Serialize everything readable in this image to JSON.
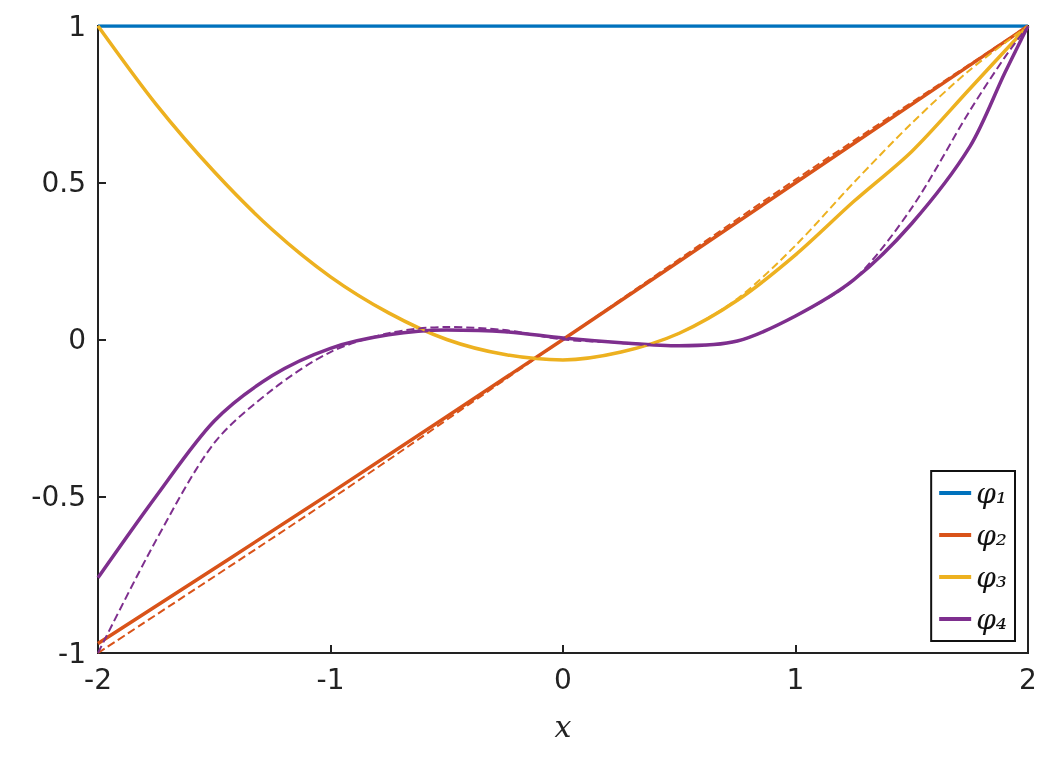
{
  "chart_data": {
    "type": "line",
    "xlabel": "x",
    "xlim": [
      -2,
      2
    ],
    "xticks": [
      -2,
      -1,
      0,
      1,
      2
    ],
    "ylim": [
      -1,
      1
    ],
    "yticks": [
      -1,
      -0.5,
      0,
      0.5,
      1
    ],
    "grid": false,
    "legend": "bottom right",
    "marker": "none",
    "series": [
      {
        "name": "φ₁",
        "color": "#0072bd",
        "line_style": "solid",
        "x": [
          -2,
          2
        ],
        "values": [
          1,
          1
        ]
      },
      {
        "name": "φ₂",
        "color": "#d95319",
        "line_style": "solid",
        "x": [
          -2,
          -1,
          0,
          1,
          2
        ],
        "values": [
          -0.97,
          -0.49,
          0,
          0.5,
          1
        ]
      },
      {
        "name": "φ₃",
        "color": "#edb120",
        "line_style": "solid",
        "x": [
          -2,
          -1.75,
          -1.5,
          -1.25,
          -1,
          -0.75,
          -0.5,
          -0.25,
          0,
          0.25,
          0.5,
          0.75,
          1,
          1.25,
          1.5,
          1.75,
          2
        ],
        "values": [
          1,
          0.75,
          0.535,
          0.35,
          0.2,
          0.085,
          0.0,
          -0.048,
          -0.065,
          -0.04,
          0.02,
          0.125,
          0.27,
          0.44,
          0.6,
          0.8,
          1
        ]
      },
      {
        "name": "φ₄",
        "color": "#7e2f8e",
        "line_style": "solid",
        "x": [
          -2,
          -1.75,
          -1.5,
          -1.25,
          -1,
          -0.75,
          -0.5,
          -0.25,
          0,
          0.25,
          0.5,
          0.75,
          1,
          1.25,
          1.5,
          1.75,
          1.9,
          2
        ],
        "values": [
          -0.76,
          -0.5,
          -0.26,
          -0.115,
          -0.028,
          0.015,
          0.03,
          0.025,
          0.005,
          -0.01,
          -0.02,
          -0.005,
          0.075,
          0.19,
          0.37,
          0.615,
          0.85,
          1
        ]
      },
      {
        "color": "#d95319",
        "line_style": "dashed",
        "x": [
          -2,
          -1,
          0,
          1,
          2
        ],
        "values": [
          -1,
          -0.51,
          0,
          0.51,
          1
        ]
      },
      {
        "color": "#edb120",
        "line_style": "dashed",
        "x": [
          -2,
          -1.75,
          -1.5,
          -1.25,
          -1,
          -0.75,
          -0.5,
          -0.25,
          0,
          0.25,
          0.5,
          0.75,
          1,
          1.25,
          1.5,
          1.75,
          2
        ],
        "values": [
          1,
          0.75,
          0.535,
          0.35,
          0.2,
          0.085,
          0.0,
          -0.048,
          -0.065,
          -0.04,
          0.02,
          0.13,
          0.3,
          0.5,
          0.69,
          0.86,
          1
        ]
      },
      {
        "color": "#7e2f8e",
        "line_style": "dashed",
        "x": [
          -2,
          -1.75,
          -1.5,
          -1.25,
          -1,
          -0.75,
          -0.5,
          -0.25,
          0,
          0.25,
          0.5,
          0.75,
          1,
          1.25,
          1.5,
          1.75,
          1.9,
          2
        ],
        "values": [
          -1,
          -0.64,
          -0.33,
          -0.16,
          -0.04,
          0.02,
          0.04,
          0.03,
          0,
          -0.01,
          -0.02,
          -0.005,
          0.075,
          0.19,
          0.42,
          0.73,
          0.9,
          1
        ]
      }
    ]
  }
}
